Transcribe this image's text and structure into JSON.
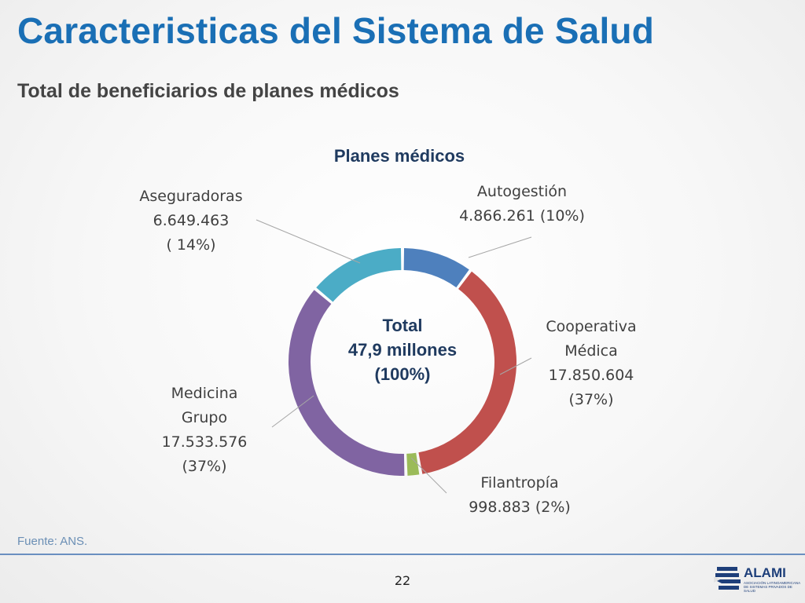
{
  "slide": {
    "title": "Caracteristicas del Sistema de Salud",
    "subtitle": "Total de beneficiarios de planes médicos",
    "source": "Fuente: ANS.",
    "page_number": "22"
  },
  "logo": {
    "name": "ALAMI",
    "tagline": "Asociación Latinoamericana de Sistemas Privados de Salud"
  },
  "chart_data": {
    "type": "pie",
    "title": "Planes médicos",
    "center_label": [
      "Total",
      "47,9 millones",
      "(100%)"
    ],
    "categories": [
      "Autogestión",
      "Cooperativa Médica",
      "Filantropía",
      "Medicina Grupo",
      "Aseguradoras"
    ],
    "values": [
      4866261,
      17850604,
      998883,
      17533576,
      6649463
    ],
    "percent_labels": [
      "10%",
      "37%",
      "2%",
      "37%",
      "14%"
    ],
    "data_labels": [
      [
        "Autogestión",
        "4.866.261 (10%)"
      ],
      [
        "Cooperativa",
        "Médica",
        "17.850.604",
        "(37%)"
      ],
      [
        "Filantropía",
        "998.883 (2%)"
      ],
      [
        "Medicina",
        "Grupo",
        "17.533.576",
        "(37%)"
      ],
      [
        "Aseguradoras",
        "6.649.463",
        "( 14%)"
      ]
    ],
    "colors": [
      "#4e80bd",
      "#c0504d",
      "#9bbb59",
      "#8064a2",
      "#4bacc6"
    ],
    "legend": "none"
  }
}
